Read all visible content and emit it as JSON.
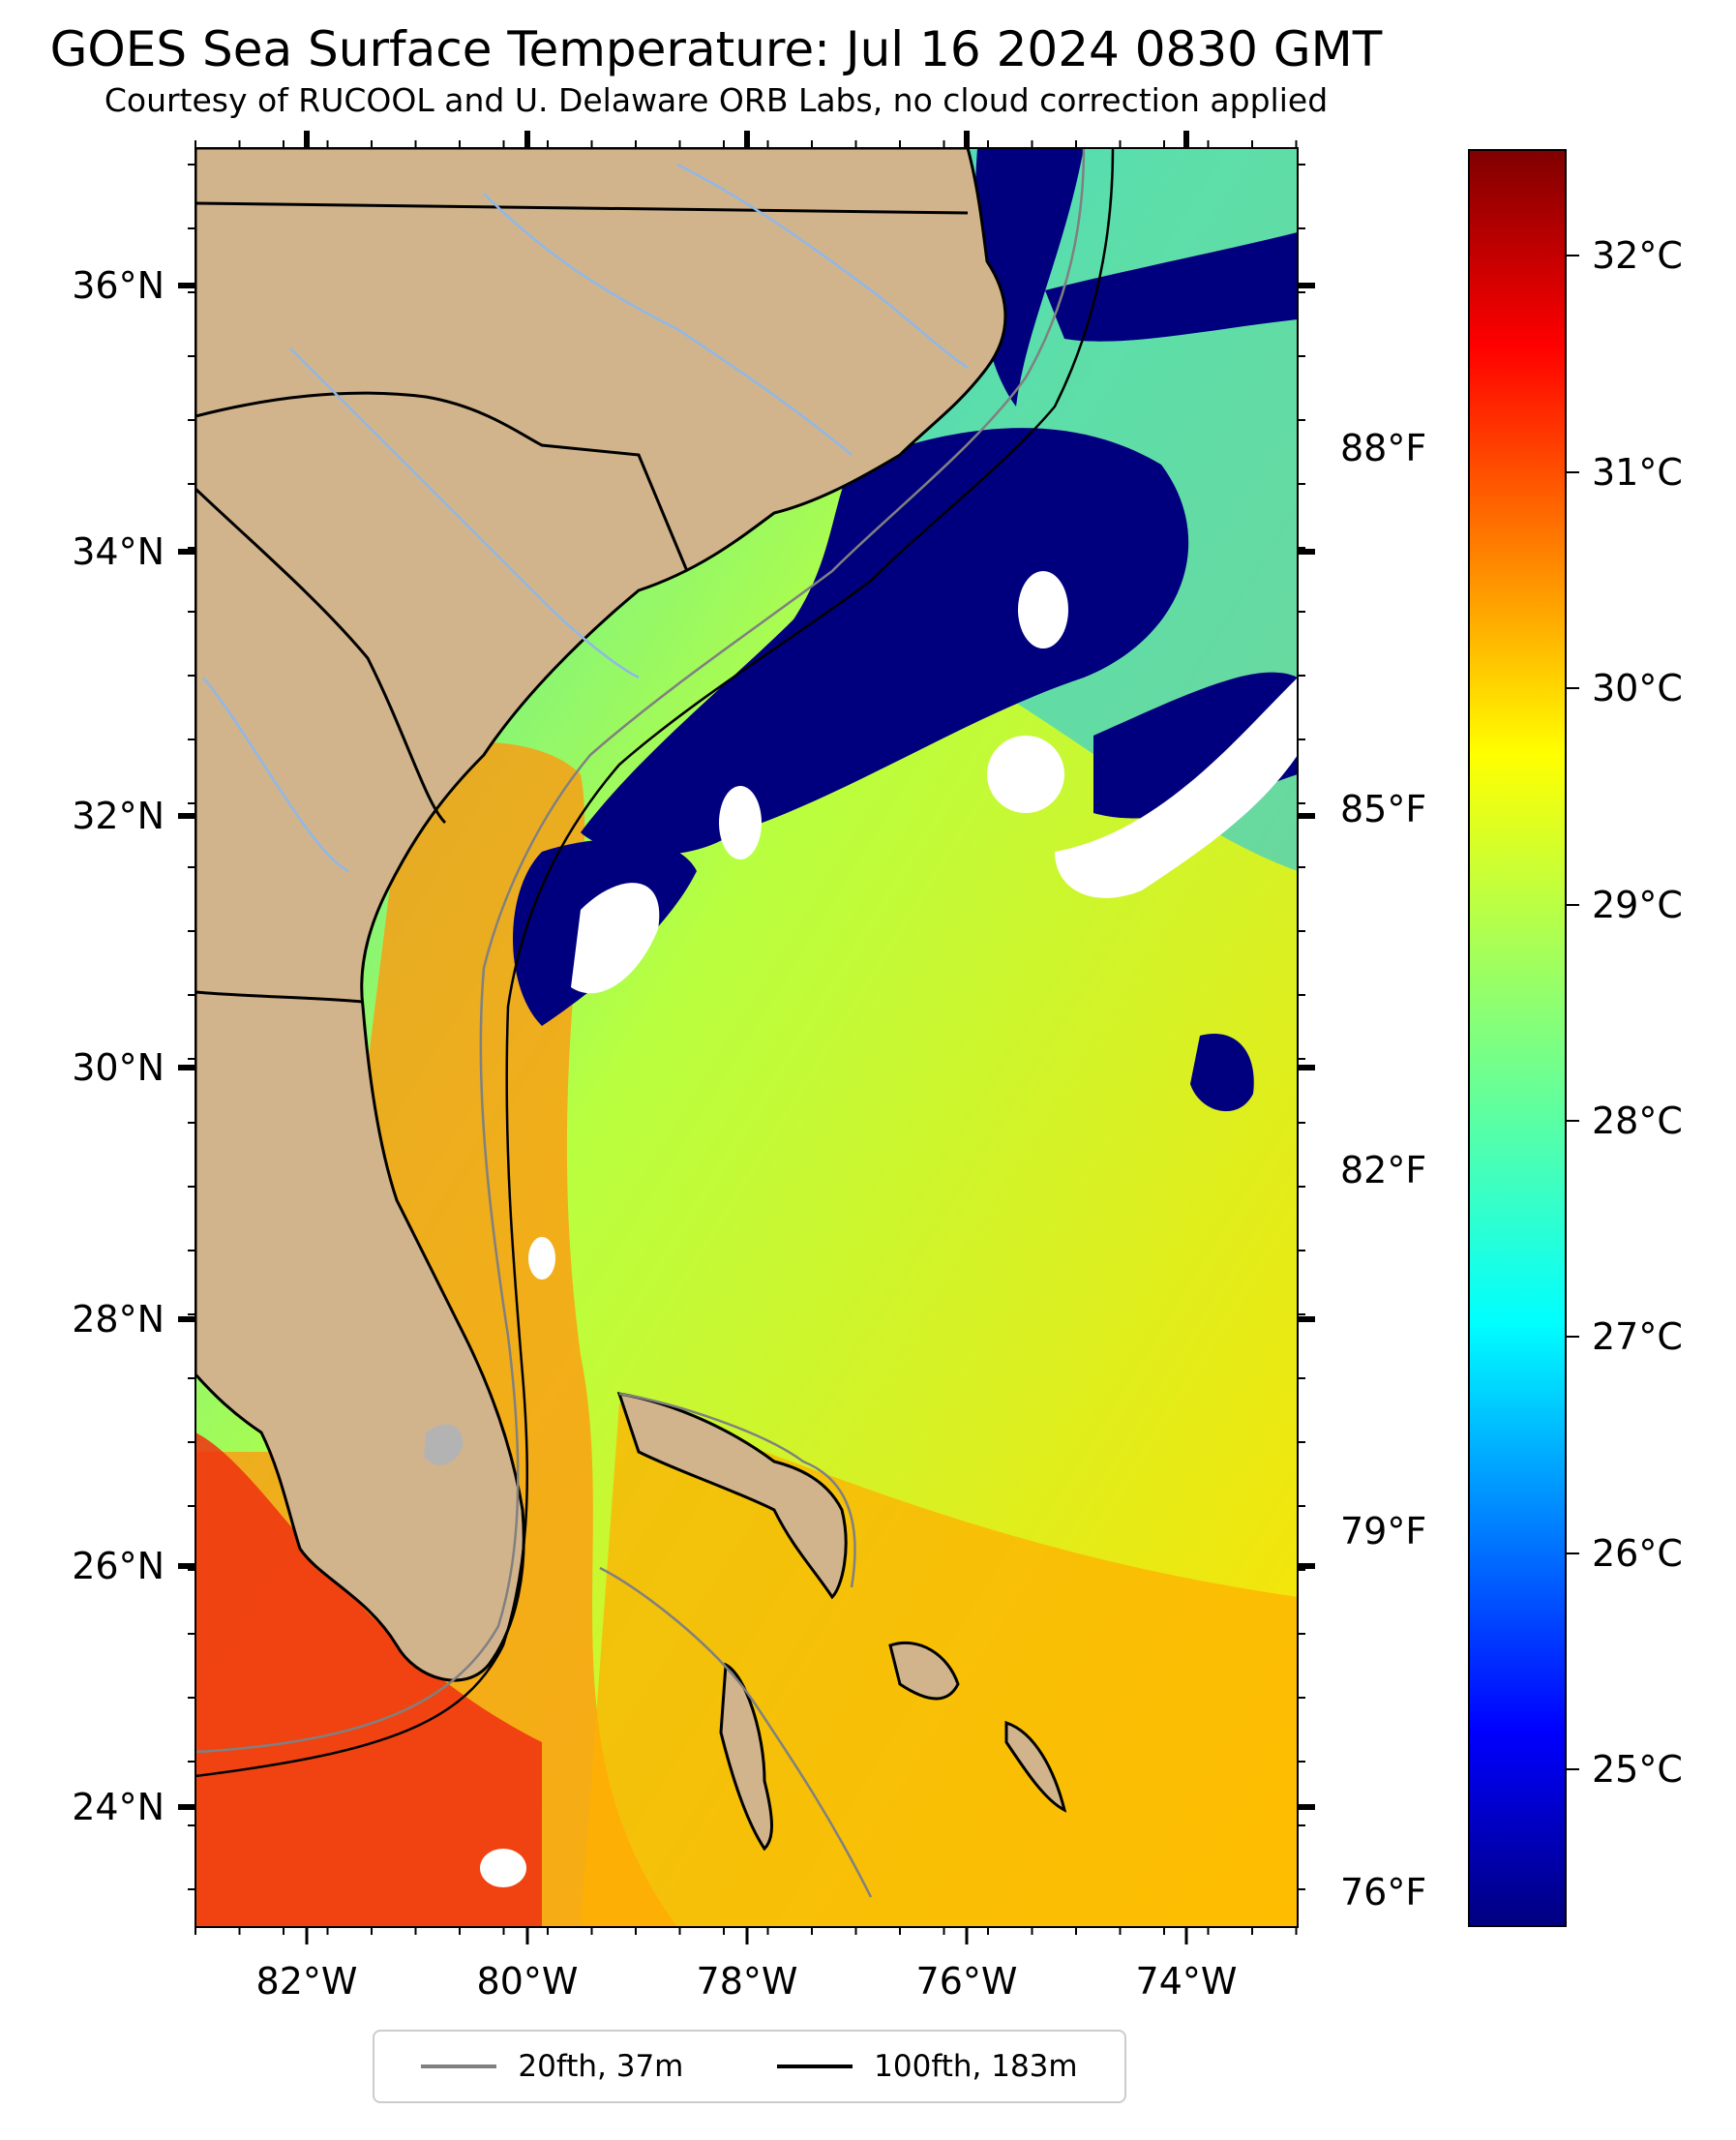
{
  "title": "GOES Sea Surface Temperature: Jul 16 2024 0830 GMT",
  "subtitle": "Courtesy of RUCOOL and U. Delaware ORB Labs, no cloud correction applied",
  "map": {
    "lon_range": [
      -83.0,
      -73.0
    ],
    "lat_range": [
      23.0,
      37.0
    ],
    "lon_ticks": [
      "82°W",
      "80°W",
      "78°W",
      "76°W",
      "74°W"
    ],
    "lat_ticks": [
      "36°N",
      "34°N",
      "32°N",
      "30°N",
      "28°N",
      "26°N",
      "24°N"
    ],
    "fahrenheit_ticks": [
      "88°F",
      "85°F",
      "82°F",
      "79°F",
      "76°F"
    ],
    "land_color": "#d2b48c",
    "water_colormap": "jet",
    "cloud_mask_color": "#ffffff"
  },
  "colorbar": {
    "range_c": [
      24.5,
      32.5
    ],
    "labels": [
      "32°C",
      "31°C",
      "30°C",
      "29°C",
      "28°C",
      "27°C",
      "26°C",
      "25°C"
    ],
    "colors": [
      "#00007f",
      "#0000ff",
      "#007fff",
      "#00ffff",
      "#7fff7f",
      "#ffff00",
      "#ff7f00",
      "#ff0000",
      "#7f0000"
    ]
  },
  "legend": {
    "items": [
      {
        "label": "20fth, 37m",
        "color": "#808080"
      },
      {
        "label": "100fth, 183m",
        "color": "#000000"
      }
    ]
  }
}
